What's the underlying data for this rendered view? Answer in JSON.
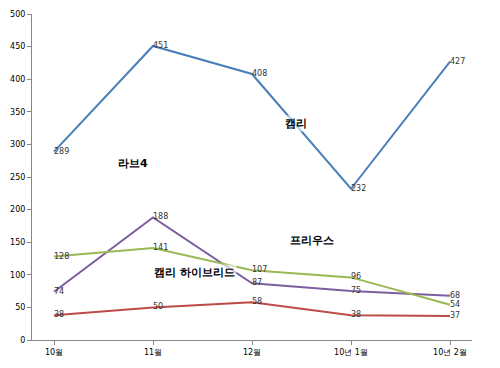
{
  "chart_data": {
    "type": "line",
    "categories": [
      "10월",
      "11월",
      "12월",
      "10년 1월",
      "10년 2월"
    ],
    "series": [
      {
        "name": "캠리",
        "color": "#4a7ebb",
        "values": [
          289,
          451,
          408,
          232,
          427
        ]
      },
      {
        "name": "라브4",
        "color": "#7d5fa0",
        "values": [
          74,
          188,
          87,
          75,
          68
        ]
      },
      {
        "name": "프리우스",
        "color": "#98b954",
        "values": [
          128,
          141,
          107,
          96,
          54
        ]
      },
      {
        "name": "캠리 하이브리드",
        "color": "#be4b48",
        "values": [
          38,
          50,
          58,
          38,
          37
        ]
      }
    ],
    "ylim": [
      0,
      500
    ],
    "yticks": [
      0,
      50,
      100,
      150,
      200,
      250,
      300,
      350,
      400,
      450,
      500
    ],
    "grid": false,
    "data_labels": true
  }
}
